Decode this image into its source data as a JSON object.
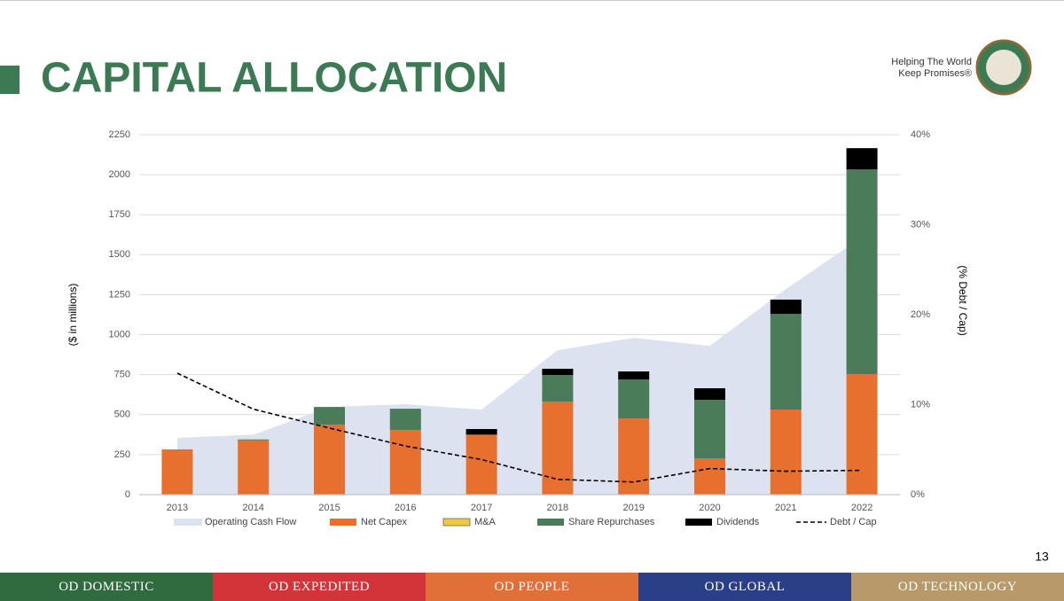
{
  "header": {
    "title": "CAPITAL ALLOCATION",
    "tagline": [
      "Helping The World",
      "Keep Promises®"
    ]
  },
  "page_number": "13",
  "footer": {
    "tabs": [
      "OD DOMESTIC",
      "OD EXPEDITED",
      "OD PEOPLE",
      "OD GLOBAL",
      "OD TECHNOLOGY"
    ]
  },
  "chart_data": {
    "type": "bar",
    "y_label": "($ in millions)",
    "y2_label": "(% Debt / Cap)",
    "categories": [
      "2013",
      "2014",
      "2015",
      "2016",
      "2017",
      "2018",
      "2019",
      "2020",
      "2021",
      "2022"
    ],
    "ylim": [
      0,
      2250
    ],
    "yticks": [
      0,
      250,
      500,
      750,
      1000,
      1250,
      1500,
      1750,
      2000,
      2250
    ],
    "y2lim": [
      0,
      40
    ],
    "y2ticks": [
      {
        "value": 0,
        "label": "0%"
      },
      {
        "value": 10,
        "label": "10%"
      },
      {
        "value": 20,
        "label": "20%"
      },
      {
        "value": 30,
        "label": "30%"
      },
      {
        "value": 40,
        "label": "40%"
      }
    ],
    "grid": true,
    "stacked": true,
    "legend": "bottom",
    "series": [
      {
        "name": "Operating Cash Flow",
        "type": "area",
        "color": "#dde2f1",
        "values": [
          355,
          375,
          548,
          565,
          532,
          903,
          980,
          930,
          1285,
          1610
        ]
      },
      {
        "name": "Net Capex",
        "type": "bar",
        "color": "#e8702f",
        "values": [
          283,
          340,
          438,
          404,
          375,
          582,
          476,
          227,
          532,
          753
        ]
      },
      {
        "name": "M&A",
        "type": "bar",
        "color": "#f2c744",
        "values": [
          0,
          0,
          0,
          0,
          0,
          0,
          0,
          0,
          0,
          0
        ]
      },
      {
        "name": "Share Repurchases",
        "type": "bar",
        "color": "#4a7c59",
        "values": [
          0,
          5,
          110,
          133,
          0,
          166,
          244,
          366,
          598,
          1280
        ]
      },
      {
        "name": "Dividends",
        "type": "bar",
        "color": "#000000",
        "values": [
          0,
          0,
          0,
          0,
          35,
          39,
          50,
          72,
          89,
          133
        ]
      },
      {
        "name": "Debt / Cap",
        "type": "line",
        "axis": "y2",
        "dashed": true,
        "color": "#000000",
        "values": [
          13.5,
          9.5,
          7.4,
          5.4,
          3.9,
          1.7,
          1.4,
          2.9,
          2.6,
          2.7
        ]
      }
    ]
  }
}
